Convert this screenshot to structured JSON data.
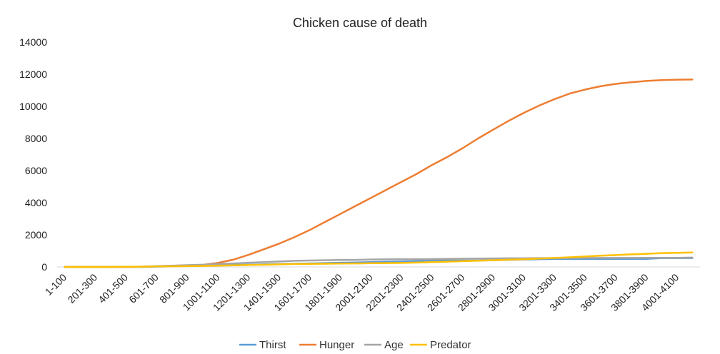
{
  "chart_data": {
    "type": "line",
    "title": "Chicken cause of death",
    "xlabel": "",
    "ylabel": "",
    "ylim": [
      0,
      14000
    ],
    "yticks": [
      0,
      2000,
      4000,
      6000,
      8000,
      10000,
      12000,
      14000
    ],
    "grid": false,
    "legend_position": "bottom",
    "categories": [
      "1-100",
      "101-200",
      "201-300",
      "301-400",
      "401-500",
      "501-600",
      "601-700",
      "701-800",
      "801-900",
      "901-1000",
      "1001-1100",
      "1101-1200",
      "1201-1300",
      "1301-1400",
      "1401-1500",
      "1501-1600",
      "1601-1700",
      "1701-1800",
      "1801-1900",
      "1901-2000",
      "2001-2100",
      "2101-2200",
      "2201-2300",
      "2301-2400",
      "2401-2500",
      "2501-2600",
      "2601-2700",
      "2701-2800",
      "2801-2900",
      "2901-3000",
      "3001-3100",
      "3101-3200",
      "3201-3300",
      "3301-3400",
      "3401-3500",
      "3501-3600",
      "3601-3700",
      "3701-3800",
      "3801-3900",
      "3901-4000",
      "4001-4100",
      "4101-4200"
    ],
    "labeled_categories": [
      "1-100",
      "201-300",
      "401-500",
      "601-700",
      "801-900",
      "1001-1100",
      "1201-1300",
      "1401-1500",
      "1601-1700",
      "1801-1900",
      "2001-2100",
      "2201-2300",
      "2401-2500",
      "2601-2700",
      "2801-2900",
      "3001-3100",
      "3201-3300",
      "3401-3500",
      "3601-3700",
      "3801-3900",
      "4001-4100"
    ],
    "series": [
      {
        "name": "Thirst",
        "color": "#5B9BD5",
        "values": [
          0,
          0,
          0,
          0,
          0,
          0,
          20,
          40,
          60,
          80,
          100,
          120,
          140,
          160,
          180,
          200,
          220,
          240,
          260,
          280,
          300,
          320,
          340,
          360,
          380,
          400,
          400,
          400,
          420,
          440,
          460,
          480,
          500,
          500,
          500,
          500,
          500,
          500,
          500,
          550,
          550,
          550
        ]
      },
      {
        "name": "Hunger",
        "color": "#ED7D31",
        "values": [
          0,
          0,
          0,
          0,
          0,
          10,
          40,
          70,
          100,
          130,
          250,
          450,
          750,
          1100,
          1450,
          1850,
          2300,
          2800,
          3300,
          3800,
          4300,
          4800,
          5300,
          5800,
          6350,
          6850,
          7400,
          8000,
          8550,
          9100,
          9600,
          10050,
          10450,
          10800,
          11050,
          11250,
          11400,
          11500,
          11580,
          11630,
          11660,
          11670
        ]
      },
      {
        "name": "Age",
        "color": "#A5A5A5",
        "values": [
          0,
          0,
          0,
          0,
          0,
          20,
          50,
          80,
          110,
          140,
          180,
          220,
          260,
          300,
          340,
          380,
          400,
          420,
          430,
          440,
          460,
          470,
          480,
          480,
          490,
          500,
          510,
          520,
          530,
          540,
          540,
          550,
          550,
          560,
          560,
          560,
          560,
          560,
          570,
          570,
          570,
          580
        ]
      },
      {
        "name": "Predator",
        "color": "#FFC000",
        "values": [
          0,
          0,
          0,
          0,
          10,
          20,
          30,
          40,
          50,
          60,
          80,
          100,
          120,
          140,
          160,
          180,
          190,
          200,
          210,
          220,
          230,
          240,
          250,
          270,
          300,
          330,
          360,
          390,
          420,
          450,
          480,
          520,
          560,
          600,
          650,
          700,
          740,
          780,
          820,
          860,
          880,
          900
        ]
      }
    ]
  }
}
